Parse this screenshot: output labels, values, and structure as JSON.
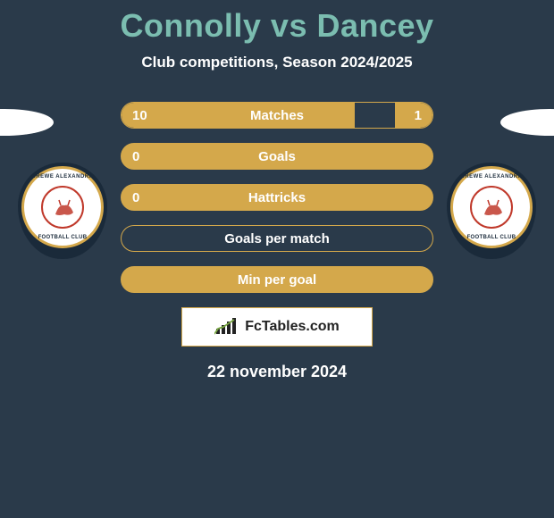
{
  "title": "Connolly vs Dancey",
  "subtitle": "Club competitions, Season 2024/2025",
  "colors": {
    "background": "#2a3a4a",
    "accent": "#d4a84b",
    "title_color": "#7bbdb0",
    "text": "#ffffff",
    "badge_navy": "#1a2a3a",
    "badge_red": "#c0392b"
  },
  "club": {
    "top_text": "CREWE ALEXANDRA",
    "bottom_text": "FOOTBALL CLUB"
  },
  "bars": [
    {
      "label": "Matches",
      "left_val": "10",
      "right_val": "1",
      "left_pct": 75,
      "right_pct": 12,
      "show_left": true,
      "show_right": true
    },
    {
      "label": "Goals",
      "left_val": "0",
      "right_val": "",
      "left_pct": 100,
      "right_pct": 0,
      "show_left": true,
      "show_right": false,
      "full": true
    },
    {
      "label": "Hattricks",
      "left_val": "0",
      "right_val": "",
      "left_pct": 100,
      "right_pct": 0,
      "show_left": true,
      "show_right": false,
      "full": true
    },
    {
      "label": "Goals per match",
      "left_val": "",
      "right_val": "",
      "left_pct": 0,
      "right_pct": 0,
      "show_left": false,
      "show_right": false
    },
    {
      "label": "Min per goal",
      "left_val": "",
      "right_val": "",
      "left_pct": 0,
      "right_pct": 0,
      "show_left": false,
      "show_right": false,
      "full": true
    }
  ],
  "logo_text": "FcTables.com",
  "date": "22 november 2024"
}
